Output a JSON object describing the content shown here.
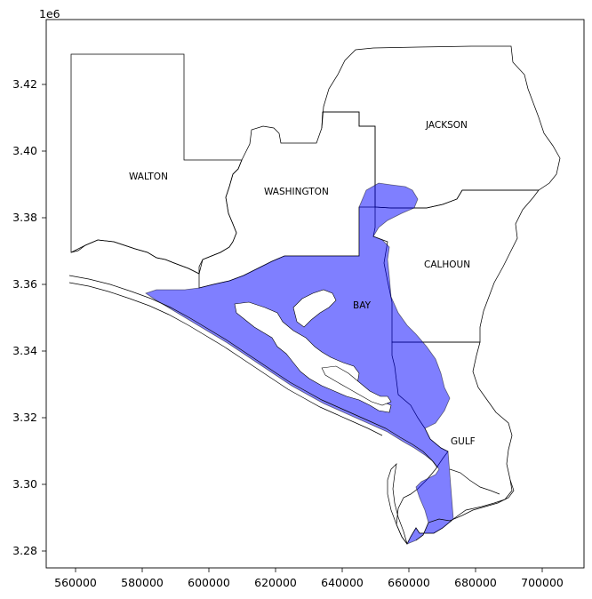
{
  "map": {
    "y_offset_label": "1e6",
    "x_ticks": [
      "560000",
      "580000",
      "600000",
      "620000",
      "640000",
      "660000",
      "680000",
      "700000"
    ],
    "y_ticks": [
      "3.28",
      "3.30",
      "3.32",
      "3.34",
      "3.36",
      "3.38",
      "3.40",
      "3.42"
    ],
    "counties": [
      {
        "name": "WALTON",
        "highlighted": false
      },
      {
        "name": "WASHINGTON",
        "highlighted": false
      },
      {
        "name": "JACKSON",
        "highlighted": false
      },
      {
        "name": "CALHOUN",
        "highlighted": false
      },
      {
        "name": "BAY",
        "highlighted": true
      },
      {
        "name": "GULF",
        "highlighted": false
      }
    ],
    "highlight_color": "#0000ff",
    "highlight_alpha": 0.5
  }
}
